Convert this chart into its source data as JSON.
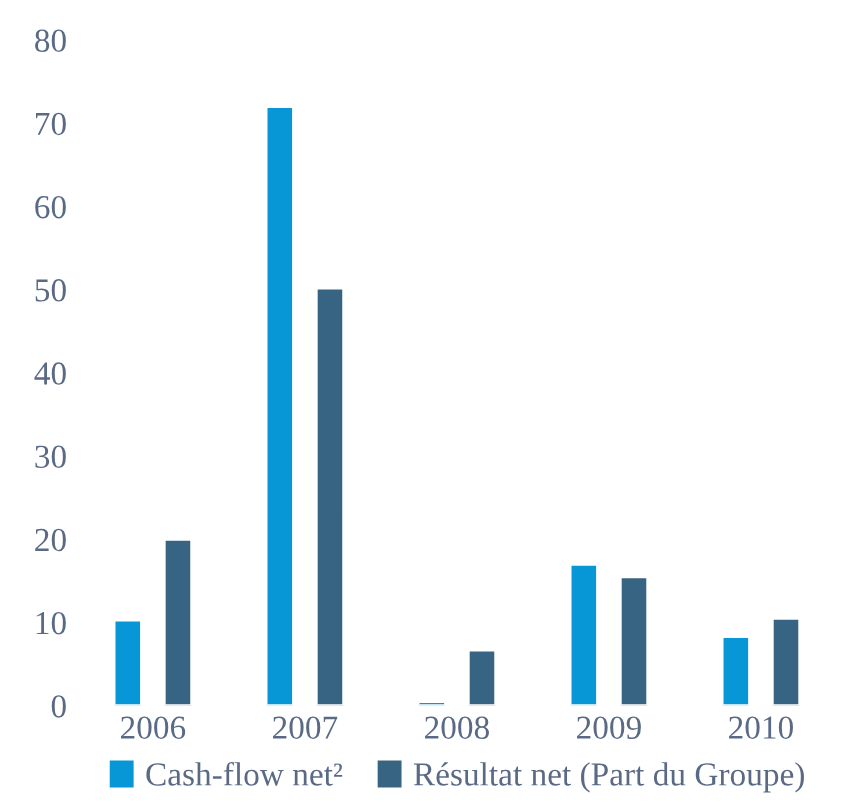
{
  "chart_data": {
    "type": "bar",
    "categories": [
      "2006",
      "2007",
      "2008",
      "2009",
      "2010"
    ],
    "series": [
      {
        "name": "Cash-flow net²",
        "color": "#0797d6",
        "values": [
          10.3,
          72,
          0.5,
          17,
          8.3
        ]
      },
      {
        "name": "Résultat net (Part du Groupe)",
        "color": "#386483",
        "values": [
          20,
          50.2,
          6.7,
          15.5,
          10.5
        ]
      }
    ],
    "ylim": [
      0,
      80
    ],
    "yticks": [
      0,
      10,
      20,
      30,
      40,
      50,
      60,
      70,
      80
    ],
    "grid": false,
    "legend": "bottom"
  }
}
